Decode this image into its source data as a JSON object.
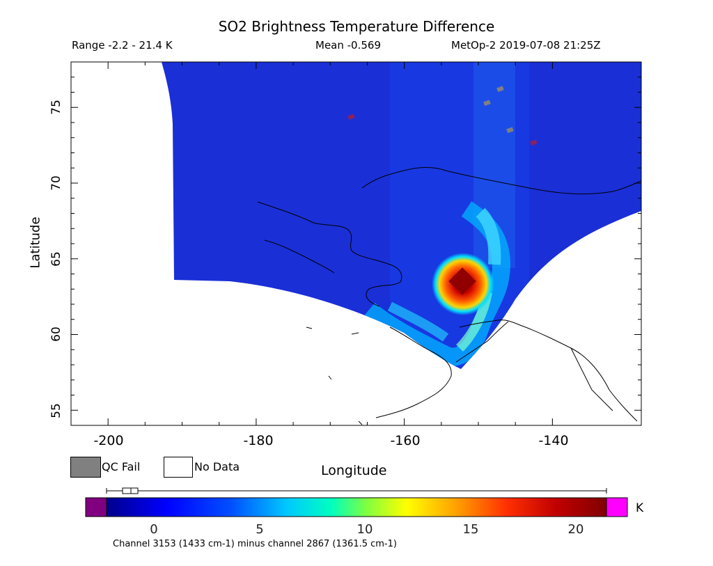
{
  "title": "SO2 Brightness Temperature Difference",
  "range_label": "Range -2.2 - 21.4 K",
  "mean_label": "Mean -0.569",
  "sat_label": "MetOp-2 2019-07-08 21:25Z",
  "axes": {
    "xlabel": "Longitude",
    "ylabel": "Latitude",
    "xlim": [
      -205,
      -128
    ],
    "ylim": [
      54,
      78
    ],
    "xticks": [
      "-200",
      "-180",
      "-160",
      "-140"
    ],
    "yticks": [
      "55",
      "60",
      "65",
      "70",
      "75"
    ]
  },
  "legend": {
    "qc_fail": "QC Fail",
    "no_data": "No Data",
    "qc_color": "#808080"
  },
  "colorbar": {
    "min": -2.2,
    "max": 21.4,
    "unit": "K",
    "ticks": [
      "0",
      "5",
      "10",
      "15",
      "20"
    ],
    "under_color": "#800080",
    "over_color": "#ff00ff",
    "boxplot": {
      "whisker_low": -2.2,
      "q1": -1.6,
      "median": -1.2,
      "q3": -0.8,
      "whisker_high": 21.4
    }
  },
  "channel_note": "Channel 3153 (1433 cm-1) minus channel 2867 (1361.5 cm-1)",
  "plume": {
    "center_lon": -152.5,
    "center_lat": 63.2,
    "peak_value": 21.4
  }
}
